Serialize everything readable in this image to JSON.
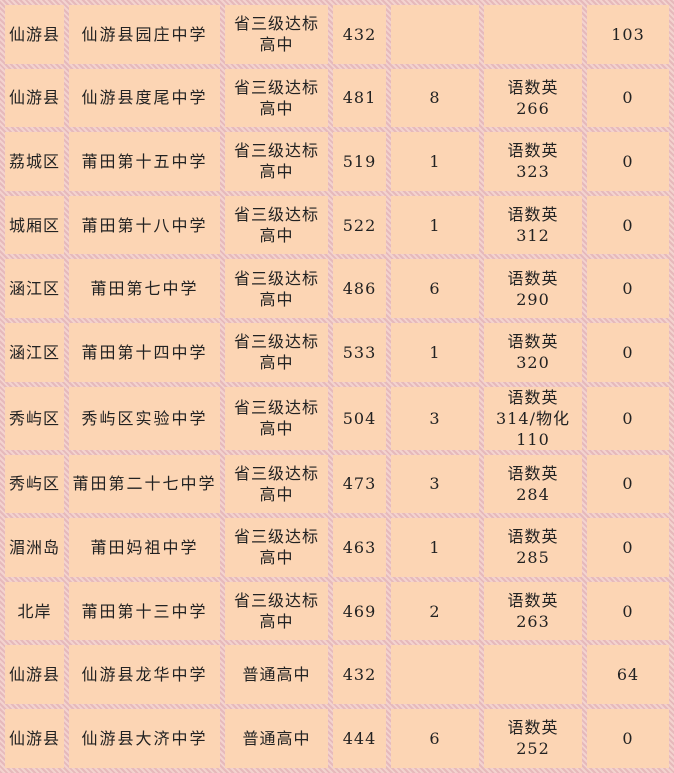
{
  "rows": [
    [
      "仙游县",
      "仙游县园庄中学",
      "省三级达标高中",
      "432",
      "",
      "",
      "103"
    ],
    [
      "仙游县",
      "仙游县度尾中学",
      "省三级达标高中",
      "481",
      "8",
      "语数英 266",
      "0"
    ],
    [
      "荔城区",
      "莆田第十五中学",
      "省三级达标高中",
      "519",
      "1",
      "语数英 323",
      "0"
    ],
    [
      "城厢区",
      "莆田第十八中学",
      "省三级达标高中",
      "522",
      "1",
      "语数英 312",
      "0"
    ],
    [
      "涵江区",
      "莆田第七中学",
      "省三级达标高中",
      "486",
      "6",
      "语数英 290",
      "0"
    ],
    [
      "涵江区",
      "莆田第十四中学",
      "省三级达标高中",
      "533",
      "1",
      "语数英 320",
      "0"
    ],
    [
      "秀屿区",
      "秀屿区实验中学",
      "省三级达标高中",
      "504",
      "3",
      "语数英 314/物化 110",
      "0"
    ],
    [
      "秀屿区",
      "莆田第二十七中学",
      "省三级达标高中",
      "473",
      "3",
      "语数英 284",
      "0"
    ],
    [
      "湄洲岛",
      "莆田妈祖中学",
      "省三级达标高中",
      "463",
      "1",
      "语数英 285",
      "0"
    ],
    [
      "北岸",
      "莆田第十三中学",
      "省三级达标高中",
      "469",
      "2",
      "语数英 263",
      "0"
    ],
    [
      "仙游县",
      "仙游县龙华中学",
      "普通高中",
      "432",
      "",
      "",
      "64"
    ],
    [
      "仙游县",
      "仙游县大济中学",
      "普通高中",
      "444",
      "6",
      "语数英 252",
      "0"
    ]
  ]
}
